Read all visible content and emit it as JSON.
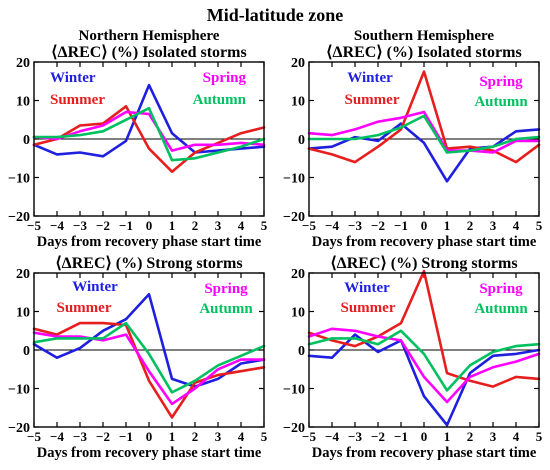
{
  "figure_title": "Mid-latitude zone",
  "chart_data": [
    {
      "type": "line",
      "hemisphere_title": "Northern Hemisphere",
      "title": "⟨ΔREC⟩ (%) Isolated storms",
      "xlabel": "Days from recovery phase start time",
      "ylabel": "",
      "x": [
        -5,
        -4,
        -3,
        -2,
        -1,
        0,
        1,
        2,
        3,
        4,
        5
      ],
      "xlim": [
        -5,
        5
      ],
      "ylim": [
        -20,
        20
      ],
      "xticks": [
        -5,
        -4,
        -3,
        -2,
        -1,
        0,
        1,
        2,
        3,
        4,
        5
      ],
      "yticks": [
        -20,
        -10,
        0,
        10,
        20
      ],
      "zero_line": true,
      "series": [
        {
          "name": "Winter",
          "color": "#1f1fe0",
          "values": [
            -1.5,
            -4.0,
            -3.5,
            -4.5,
            -0.5,
            14.0,
            1.5,
            -3.5,
            -3.0,
            -2.5,
            -2.0
          ]
        },
        {
          "name": "Summer",
          "color": "#e61e1e",
          "values": [
            -1.5,
            0.0,
            3.5,
            4.0,
            8.5,
            -2.5,
            -8.5,
            -3.5,
            -1.0,
            1.5,
            3.0
          ]
        },
        {
          "name": "Spring",
          "color": "#ff00ff",
          "values": [
            0.5,
            0.0,
            2.0,
            3.5,
            7.0,
            6.5,
            -3.0,
            -1.5,
            -1.5,
            -1.0,
            -1.5
          ]
        },
        {
          "name": "Autumn",
          "color": "#00c060",
          "values": [
            0.5,
            0.5,
            1.0,
            2.0,
            5.0,
            8.0,
            -5.5,
            -5.0,
            -3.5,
            -2.0,
            0.0
          ]
        }
      ]
    },
    {
      "type": "line",
      "hemisphere_title": "Southern Hemisphere",
      "title": "⟨ΔREC⟩ (%) Isolated storms",
      "xlabel": "Days from recovery phase start time",
      "ylabel": "",
      "x": [
        -5,
        -4,
        -3,
        -2,
        -1,
        0,
        1,
        2,
        3,
        4,
        5
      ],
      "xlim": [
        -5,
        5
      ],
      "ylim": [
        -20,
        20
      ],
      "xticks": [
        -5,
        -4,
        -3,
        -2,
        -1,
        0,
        1,
        2,
        3,
        4,
        5
      ],
      "yticks": [
        -20,
        -10,
        0,
        10,
        20
      ],
      "zero_line": true,
      "series": [
        {
          "name": "Winter",
          "color": "#1f1fe0",
          "values": [
            -2.5,
            -2.0,
            0.5,
            -0.5,
            4.0,
            -1.0,
            -11.0,
            -2.5,
            -2.0,
            2.0,
            2.5
          ]
        },
        {
          "name": "Summer",
          "color": "#e61e1e",
          "values": [
            -2.5,
            -4.0,
            -6.0,
            -2.0,
            2.5,
            17.5,
            -2.5,
            -2.0,
            -3.0,
            -6.0,
            -1.5
          ]
        },
        {
          "name": "Spring",
          "color": "#ff00ff",
          "values": [
            1.5,
            1.0,
            2.5,
            4.5,
            5.5,
            7.0,
            -3.0,
            -3.0,
            -3.5,
            -0.5,
            -0.5
          ]
        },
        {
          "name": "Autumn",
          "color": "#00c060",
          "values": [
            0.0,
            0.0,
            0.0,
            1.0,
            3.0,
            6.0,
            -3.5,
            -3.0,
            -2.0,
            0.0,
            0.5
          ]
        }
      ]
    },
    {
      "type": "line",
      "hemisphere_title": "",
      "title": "⟨ΔREC⟩ (%) Strong storms",
      "xlabel": "Days from recovery phase start time",
      "ylabel": "",
      "x": [
        -5,
        -4,
        -3,
        -2,
        -1,
        0,
        1,
        2,
        3,
        4,
        5
      ],
      "xlim": [
        -5,
        5
      ],
      "ylim": [
        -20,
        20
      ],
      "xticks": [
        -5,
        -4,
        -3,
        -2,
        -1,
        0,
        1,
        2,
        3,
        4,
        5
      ],
      "yticks": [
        -20,
        -10,
        0,
        10,
        20
      ],
      "zero_line": true,
      "series": [
        {
          "name": "Winter",
          "color": "#1f1fe0",
          "values": [
            1.5,
            -2.0,
            0.5,
            5.0,
            8.0,
            14.5,
            -7.5,
            -9.5,
            -7.5,
            -3.5,
            -2.5
          ]
        },
        {
          "name": "Summer",
          "color": "#e61e1e",
          "values": [
            5.5,
            4.0,
            7.0,
            7.0,
            6.5,
            -8.0,
            -17.5,
            -8.5,
            -6.5,
            -5.5,
            -4.5
          ]
        },
        {
          "name": "Spring",
          "color": "#ff00ff",
          "values": [
            4.5,
            3.5,
            3.5,
            2.5,
            4.0,
            -5.5,
            -14.0,
            -10.0,
            -5.0,
            -2.5,
            -2.5
          ]
        },
        {
          "name": "Autumn",
          "color": "#00c060",
          "values": [
            2.0,
            3.0,
            3.0,
            3.0,
            7.0,
            -1.0,
            -11.0,
            -8.0,
            -4.0,
            -1.5,
            1.0
          ]
        }
      ]
    },
    {
      "type": "line",
      "hemisphere_title": "",
      "title": "⟨ΔREC⟩ (%) Strong storms",
      "xlabel": "Days from recovery phase start time",
      "ylabel": "",
      "x": [
        -5,
        -4,
        -3,
        -2,
        -1,
        0,
        1,
        2,
        3,
        4,
        5
      ],
      "xlim": [
        -5,
        5
      ],
      "ylim": [
        -20,
        20
      ],
      "xticks": [
        -5,
        -4,
        -3,
        -2,
        -1,
        0,
        1,
        2,
        3,
        4,
        5
      ],
      "yticks": [
        -20,
        -10,
        0,
        10,
        20
      ],
      "zero_line": true,
      "series": [
        {
          "name": "Winter",
          "color": "#1f1fe0",
          "values": [
            -1.5,
            -2.0,
            4.0,
            -0.5,
            2.5,
            -12.0,
            -19.5,
            -6.0,
            -1.5,
            -1.0,
            0.0
          ]
        },
        {
          "name": "Summer",
          "color": "#e61e1e",
          "values": [
            4.5,
            2.5,
            1.0,
            3.5,
            7.0,
            20.5,
            -6.0,
            -8.0,
            -9.5,
            -7.0,
            -7.5
          ]
        },
        {
          "name": "Spring",
          "color": "#ff00ff",
          "values": [
            3.5,
            5.5,
            5.0,
            3.5,
            2.5,
            -7.0,
            -13.5,
            -7.0,
            -4.5,
            -3.0,
            -1.0
          ]
        },
        {
          "name": "Autumn",
          "color": "#00c060",
          "values": [
            1.5,
            3.0,
            3.0,
            1.5,
            5.0,
            -1.0,
            -10.5,
            -4.0,
            -0.5,
            1.0,
            1.5
          ]
        }
      ]
    }
  ]
}
